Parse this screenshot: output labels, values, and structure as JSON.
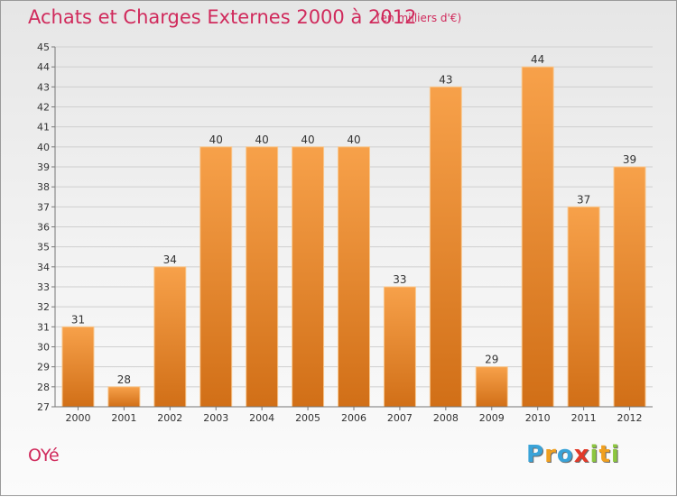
{
  "title": "Achats et Charges Externes 2000 à 2012",
  "subtitle": "(en milliers d'€)",
  "commune": "OYé",
  "logo": {
    "p": "P",
    "r": "r",
    "o": "o",
    "x": "x",
    "i": "i",
    "t": "t",
    "i2": "i"
  },
  "colors": {
    "title": "#d02a5c",
    "bar_light": "#f7a14a",
    "bar_dark": "#d16f17"
  },
  "chart_data": {
    "type": "bar",
    "categories": [
      "2000",
      "2001",
      "2002",
      "2003",
      "2004",
      "2005",
      "2006",
      "2007",
      "2008",
      "2009",
      "2010",
      "2011",
      "2012"
    ],
    "values": [
      31,
      28,
      34,
      40,
      40,
      40,
      40,
      33,
      43,
      29,
      44,
      37,
      39
    ],
    "title": "Achats et Charges Externes 2000 à 2012",
    "subtitle": "(en milliers d'€)",
    "xlabel": "",
    "ylabel": "",
    "ylim": [
      27,
      45
    ],
    "yticks": [
      27,
      28,
      29,
      30,
      31,
      32,
      33,
      34,
      35,
      36,
      37,
      38,
      39,
      40,
      41,
      42,
      43,
      44,
      45
    ],
    "grid": true,
    "data_labels": true
  }
}
